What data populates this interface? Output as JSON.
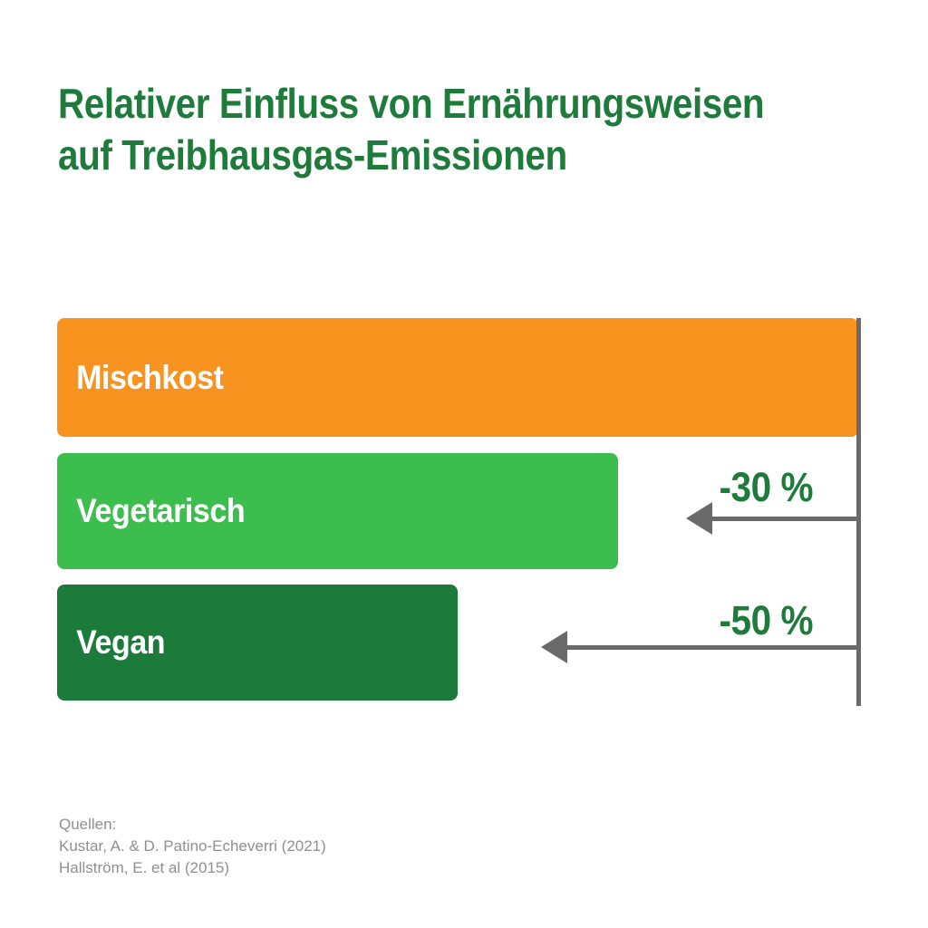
{
  "title": {
    "line1": "Relativer Einfluss von Ernährungsweisen",
    "line2": "auf Treibhausgas-Emissionen"
  },
  "sources": {
    "heading": "Quellen:",
    "items": [
      "Kustar, A. & D. Patino-Echeverri (2021)",
      "Hallström, E. et al (2015)"
    ]
  },
  "colors": {
    "title_green": "#1E7B3C",
    "bar_orange": "#F7931E",
    "bar_light_green": "#3CBE4F",
    "bar_dark_green": "#1C7A3B",
    "arrow_gray": "#6A6A6A",
    "source_gray": "#8F8F8F",
    "label_white": "#FFFFFF",
    "background": "#FFFFFF"
  },
  "chart_data": {
    "type": "bar",
    "orientation": "horizontal",
    "title": "Relativer Einfluss von Ernährungsweisen auf Treibhausgas-Emissionen",
    "categories": [
      "Mischkost",
      "Vegetarisch",
      "Vegan"
    ],
    "values": [
      100,
      70,
      50
    ],
    "value_unit": "percent relative to Mischkost baseline",
    "xlim": [
      0,
      100
    ],
    "grid": false,
    "legend": false,
    "baseline_axis": "vertical line at right edge marking 100 %",
    "bars": [
      {
        "label": "Mischkost",
        "value": 100,
        "color": "#F7931E",
        "annotation": ""
      },
      {
        "label": "Vegetarisch",
        "value": 70,
        "color": "#3CBE4F",
        "annotation": "-30 %"
      },
      {
        "label": "Vegan",
        "value": 50,
        "color": "#1C7A3B",
        "annotation": "-50 %"
      }
    ]
  }
}
